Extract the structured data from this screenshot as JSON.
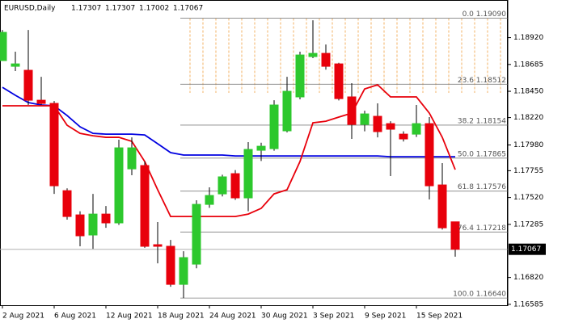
{
  "chart_data": {
    "type": "candlestick",
    "title": "EURUSD,Daily",
    "categories": [
      "2 Aug 2021",
      null,
      null,
      null,
      "6 Aug 2021",
      null,
      null,
      null,
      "12 Aug 2021",
      null,
      null,
      null,
      "18 Aug 2021",
      null,
      null,
      null,
      "24 Aug 2021",
      null,
      null,
      null,
      "30 Aug 2021",
      null,
      null,
      null,
      "3 Sep 2021",
      null,
      null,
      null,
      "9 Sep 2021",
      null,
      null,
      null,
      "15 Sep 2021",
      null,
      null,
      null
    ],
    "open": [
      1.18719,
      1.18669,
      1.18634,
      1.18372,
      1.18344,
      1.1758,
      1.17368,
      1.17192,
      1.17375,
      1.17298,
      1.17771,
      1.178,
      1.17107,
      1.17093,
      1.1676,
      1.16937,
      1.1746,
      1.17552,
      1.17729,
      1.17517,
      1.17934,
      1.17948,
      1.18104,
      1.18401,
      1.18754,
      1.18782,
      1.1869,
      1.18401,
      1.1816,
      1.18231,
      1.18167,
      1.18075,
      1.18075,
      1.18167,
      1.1763,
      1.17307
    ],
    "high": [
      1.18987,
      1.18797,
      1.18987,
      1.18577,
      1.18365,
      1.176,
      1.174,
      1.17552,
      1.17446,
      1.18026,
      1.18047,
      1.17835,
      1.17305,
      1.17149,
      1.1705,
      1.17496,
      1.17609,
      1.1772,
      1.1776,
      1.18005,
      1.18,
      1.18372,
      1.18577,
      1.18797,
      1.19072,
      1.1886,
      1.187,
      1.18521,
      1.1828,
      1.18344,
      1.18188,
      1.181,
      1.1833,
      1.18224,
      1.17821,
      1.17307
    ],
    "low": [
      1.18719,
      1.18627,
      1.1833,
      1.1833,
      1.17552,
      1.17326,
      1.17093,
      1.17071,
      1.17255,
      1.1728,
      1.17715,
      1.1708,
      1.16944,
      1.16739,
      1.1664,
      1.169,
      1.1743,
      1.1753,
      1.175,
      1.174,
      1.1784,
      1.1793,
      1.1809,
      1.1838,
      1.1874,
      1.1864,
      1.1837,
      1.18033,
      1.181,
      1.18047,
      1.17708,
      1.1801,
      1.1805,
      1.17503,
      1.1724,
      1.17002
    ],
    "close": [
      1.18966,
      1.1869,
      1.18372,
      1.18344,
      1.17623,
      1.17354,
      1.17185,
      1.17375,
      1.17298,
      1.17955,
      1.17955,
      1.17093,
      1.17093,
      1.1676,
      1.16994,
      1.1746,
      1.17538,
      1.17701,
      1.17517,
      1.17941,
      1.17969,
      1.1833,
      1.1845,
      1.18768,
      1.18782,
      1.18669,
      1.18386,
      1.1816,
      1.18252,
      1.18097,
      1.18118,
      1.18033,
      1.18167,
      1.17623,
      1.17255,
      1.17067
    ],
    "up_color": "#2dc82d",
    "down_color": "#e8000b",
    "lines": [
      {
        "color": "#0000e0",
        "values": [
          1.18485,
          1.18415,
          1.18351,
          1.1833,
          1.18323,
          1.18238,
          1.18139,
          1.18082,
          1.18075,
          1.18075,
          1.18075,
          1.18068,
          1.17991,
          1.17913,
          1.17892,
          1.17892,
          1.17892,
          1.17892,
          1.17884,
          1.17884,
          1.17884,
          1.17884,
          1.17884,
          1.17884,
          1.17884,
          1.17884,
          1.17884,
          1.17884,
          1.17884,
          1.17884,
          1.17877,
          1.17877,
          1.17877,
          1.17877,
          1.17877,
          1.17877
        ]
      },
      {
        "color": "#e8000b",
        "values": [
          1.18323,
          1.18323,
          1.18323,
          1.18323,
          1.18323,
          1.18153,
          1.18082,
          1.18061,
          1.18047,
          1.18047,
          1.18012,
          1.17835,
          1.17588,
          1.17354,
          1.17354,
          1.17354,
          1.17354,
          1.17354,
          1.17354,
          1.17375,
          1.17425,
          1.17552,
          1.17588,
          1.17835,
          1.18174,
          1.18188,
          1.18224,
          1.18259,
          1.18471,
          1.18507,
          1.18401,
          1.18401,
          1.18401,
          1.18259,
          1.18047,
          1.17764
        ]
      }
    ],
    "fib_levels": [
      {
        "value": 1.1909,
        "label": "0.0 1.19090"
      },
      {
        "value": 1.18512,
        "label": "23.6 1.18512"
      },
      {
        "value": 1.18154,
        "label": "38.2 1.18154"
      },
      {
        "value": 1.17865,
        "label": "50.0 1.17865"
      },
      {
        "value": 1.17576,
        "label": "61.8 1.17576"
      },
      {
        "value": 1.17218,
        "label": "76.4 1.17218"
      },
      {
        "value": 1.1664,
        "label": "100.0 1.16640"
      }
    ],
    "current_price": 1.17067,
    "ylim": [
      1.16577,
      1.19214
    ],
    "yticks": [
      {
        "value": 1.1892,
        "label": "1.18920"
      },
      {
        "value": 1.18685,
        "label": "1.18685"
      },
      {
        "value": 1.1845,
        "label": "1.18450"
      },
      {
        "value": 1.1822,
        "label": "1.18220"
      },
      {
        "value": 1.1798,
        "label": "1.17980"
      },
      {
        "value": 1.17755,
        "label": "1.17755"
      },
      {
        "value": 1.1752,
        "label": "1.17520"
      },
      {
        "value": 1.17285,
        "label": "1.17285"
      },
      {
        "value": 1.1682,
        "label": "1.16820"
      },
      {
        "value": 1.16585,
        "label": "1.16585"
      }
    ]
  }
}
